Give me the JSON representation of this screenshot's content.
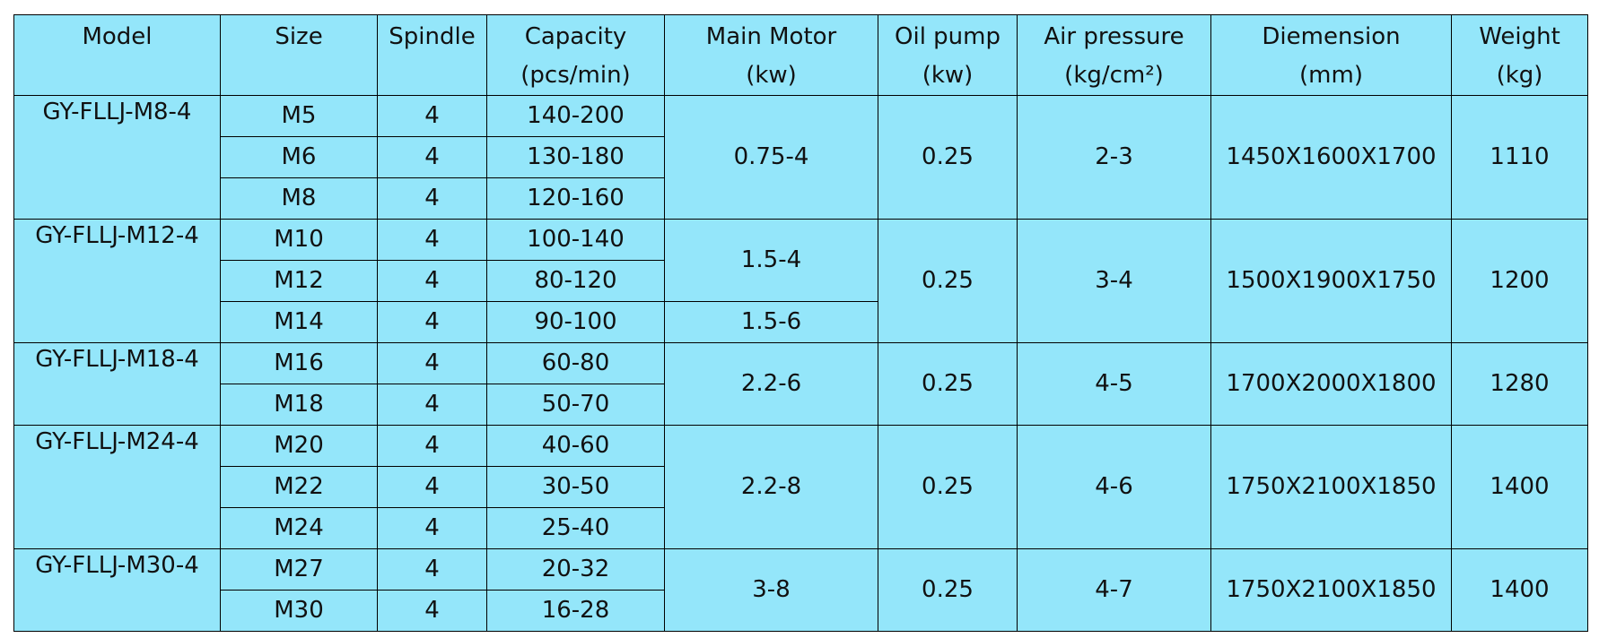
{
  "table": {
    "headers": {
      "model": "Model",
      "size": "Size",
      "spindle": "Spindle",
      "capacity": "Capacity",
      "capacity_unit": "(pcs/min)",
      "main_motor": "Main Motor",
      "main_motor_unit": "(kw)",
      "oil_pump": "Oil pump",
      "oil_pump_unit": "(kw)",
      "air_pressure": "Air pressure",
      "air_pressure_unit": "(kg/cm²)",
      "dimension": "Diemension",
      "dimension_unit": "(mm)",
      "weight": "Weight",
      "weight_unit": "(kg)"
    },
    "groups": [
      {
        "model": "GY-FLLJ-M8-4",
        "rows": [
          {
            "size": "M5",
            "spindle": "4",
            "capacity": "140-200"
          },
          {
            "size": "M6",
            "spindle": "4",
            "capacity": "130-180"
          },
          {
            "size": "M8",
            "spindle": "4",
            "capacity": "120-160"
          }
        ],
        "main_motor": "0.75-4",
        "oil_pump": "0.25",
        "air_pressure": "2-3",
        "dimension": "1450X1600X1700",
        "weight": "1110"
      },
      {
        "model": "GY-FLLJ-M12-4",
        "rows": [
          {
            "size": "M10",
            "spindle": "4",
            "capacity": "100-140"
          },
          {
            "size": "M12",
            "spindle": "4",
            "capacity": "80-120"
          },
          {
            "size": "M14",
            "spindle": "4",
            "capacity": "90-100"
          }
        ],
        "main_motor": "1.5-4",
        "main_motor_2": "1.5-6",
        "oil_pump": "0.25",
        "air_pressure": "3-4",
        "dimension": "1500X1900X1750",
        "weight": "1200"
      },
      {
        "model": "GY-FLLJ-M18-4",
        "rows": [
          {
            "size": "M16",
            "spindle": "4",
            "capacity": "60-80"
          },
          {
            "size": "M18",
            "spindle": "4",
            "capacity": "50-70"
          }
        ],
        "main_motor": "2.2-6",
        "oil_pump": "0.25",
        "air_pressure": "4-5",
        "dimension": "1700X2000X1800",
        "weight": "1280"
      },
      {
        "model": "GY-FLLJ-M24-4",
        "rows": [
          {
            "size": "M20",
            "spindle": "4",
            "capacity": "40-60"
          },
          {
            "size": "M22",
            "spindle": "4",
            "capacity": "30-50"
          },
          {
            "size": "M24",
            "spindle": "4",
            "capacity": "25-40"
          }
        ],
        "main_motor": "2.2-8",
        "oil_pump": "0.25",
        "air_pressure": "4-6",
        "dimension": "1750X2100X1850",
        "weight": "1400"
      },
      {
        "model": "GY-FLLJ-M30-4",
        "rows": [
          {
            "size": "M27",
            "spindle": "4",
            "capacity": "20-32"
          },
          {
            "size": "M30",
            "spindle": "4",
            "capacity": "16-28"
          }
        ],
        "main_motor": "3-8",
        "oil_pump": "0.25",
        "air_pressure": "4-7",
        "dimension": "1750X2100X1850",
        "weight": "1400"
      }
    ]
  },
  "colors": {
    "cell_background": "#94e6fa",
    "border": "#000000",
    "text": "#111111"
  }
}
